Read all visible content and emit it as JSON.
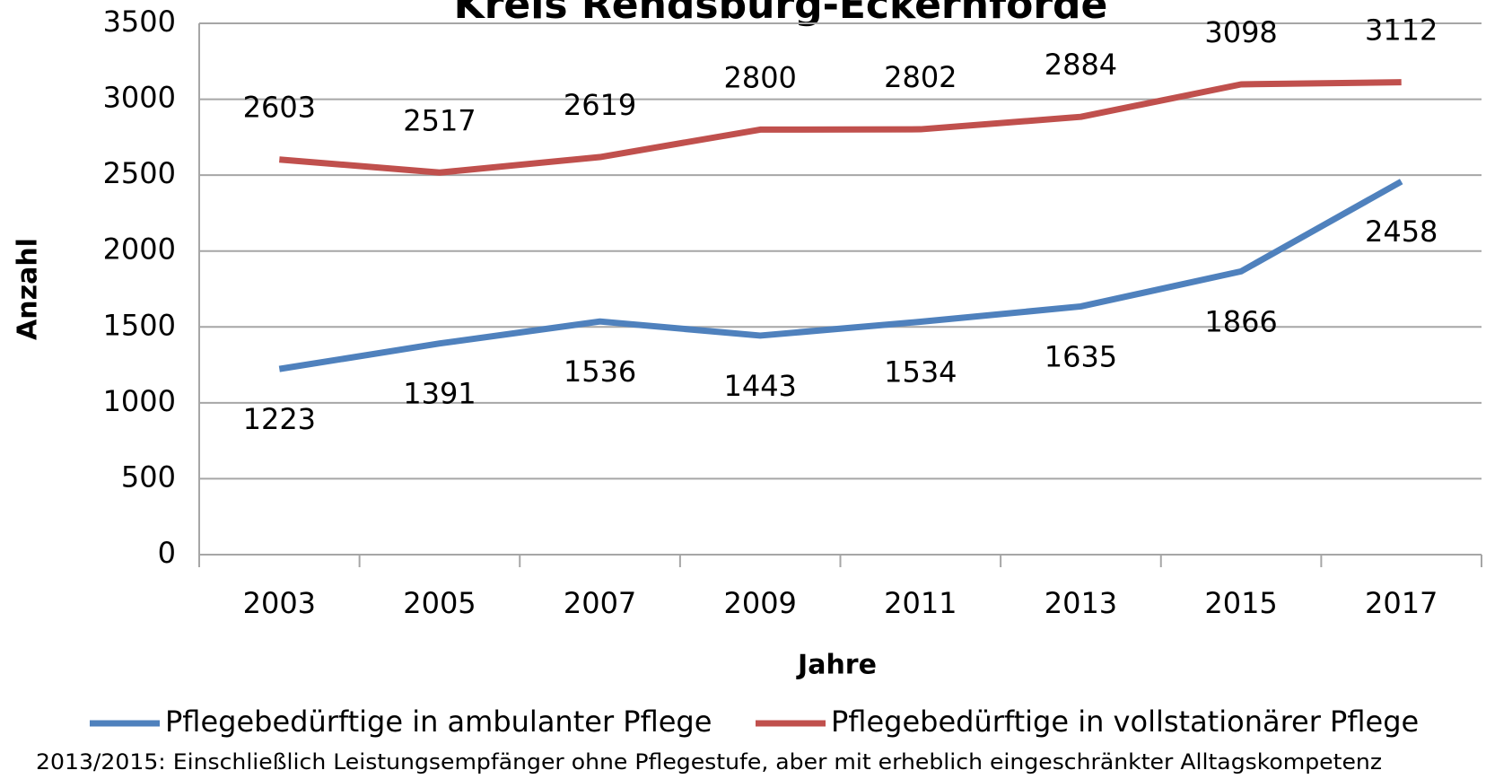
{
  "chart_data": {
    "type": "line",
    "title": "Kreis Rendsburg-Eckernförde",
    "x_label": "Jahre",
    "y_label": "Anzahl",
    "categories": [
      "2003",
      "2005",
      "2007",
      "2009",
      "2011",
      "2013",
      "2015",
      "2017"
    ],
    "series": [
      {
        "name": "Pflegebedürftige in ambulanter Pflege",
        "color": "#4f81bd",
        "values": [
          1223,
          1391,
          1536,
          1443,
          1534,
          1635,
          1866,
          2458
        ]
      },
      {
        "name": "Pflegebedürftige in vollstationärer Pflege",
        "color": "#c0504d",
        "values": [
          2603,
          2517,
          2619,
          2800,
          2802,
          2884,
          3098,
          3112
        ]
      }
    ],
    "ylim": [
      0,
      3500
    ],
    "yticks": [
      0,
      500,
      1000,
      1500,
      2000,
      2500,
      3000,
      3500
    ],
    "grid": true,
    "legend": "bottom",
    "footnote": "2013/2015: Einschließlich Leistungsempfänger ohne Pflegestufe, aber mit erheblich eingeschränkter Alltagskompetenz"
  }
}
